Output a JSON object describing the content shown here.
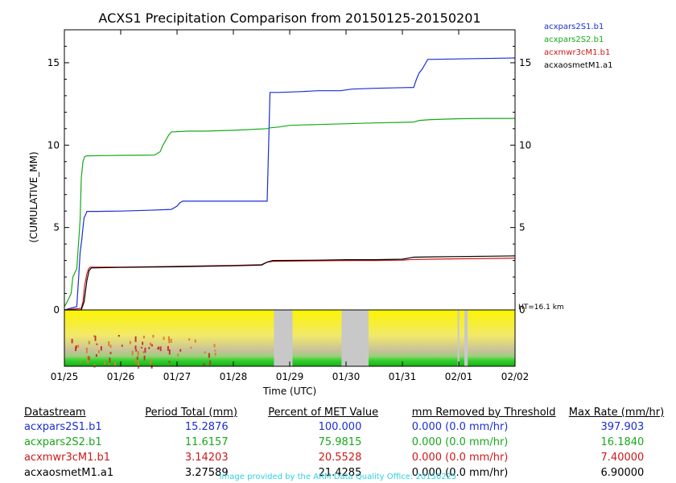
{
  "chart_data": {
    "type": "line",
    "title": "ACXS1 Precipitation Comparison from 20150125-20150201",
    "xlabel": "Time (UTC)",
    "ylabel": "(CUMULATIVE_MM)",
    "x_ticks": [
      "01/25",
      "01/26",
      "01/27",
      "01/28",
      "01/29",
      "01/30",
      "01/31",
      "02/01",
      "02/02"
    ],
    "xlim": [
      0,
      8
    ],
    "ylim": [
      0,
      17
    ],
    "y_ticks": [
      0,
      5,
      10,
      15
    ],
    "grid": false,
    "legend_position": "top-right, outside plot",
    "series": [
      {
        "name": "acxpars2S1.b1",
        "color": "#1a2ed6",
        "x": [
          0,
          0.22,
          0.25,
          0.28,
          0.31,
          0.33,
          0.35,
          0.38,
          0.4,
          0.6,
          1.0,
          1.5,
          1.9,
          2.0,
          2.05,
          2.1,
          2.5,
          3.0,
          3.6,
          3.65,
          3.8,
          4.2,
          4.5,
          4.9,
          5.0,
          5.1,
          5.5,
          6.2,
          6.25,
          6.3,
          6.35,
          6.4,
          6.45,
          8.0
        ],
        "y": [
          0,
          0.2,
          1.8,
          3.5,
          4.3,
          5.0,
          5.6,
          5.8,
          5.98,
          5.98,
          6.0,
          6.05,
          6.1,
          6.3,
          6.5,
          6.6,
          6.6,
          6.6,
          6.6,
          13.2,
          13.2,
          13.25,
          13.3,
          13.3,
          13.35,
          13.4,
          13.45,
          13.5,
          14.0,
          14.4,
          14.6,
          14.9,
          15.2,
          15.29
        ]
      },
      {
        "name": "acxpars2S2.b1",
        "color": "#17a81a",
        "x": [
          0,
          0.05,
          0.12,
          0.15,
          0.22,
          0.28,
          0.3,
          0.33,
          0.36,
          0.39,
          1.0,
          1.6,
          1.7,
          1.75,
          1.8,
          1.85,
          1.9,
          2.2,
          2.5,
          3.0,
          3.6,
          3.65,
          3.8,
          4.0,
          4.5,
          5.0,
          5.5,
          6.0,
          6.2,
          6.3,
          6.5,
          7.0,
          7.5,
          8.0
        ],
        "y": [
          0.2,
          0.5,
          1.0,
          2.0,
          2.5,
          5.5,
          8.0,
          9.0,
          9.3,
          9.35,
          9.38,
          9.4,
          9.6,
          10.0,
          10.3,
          10.6,
          10.8,
          10.85,
          10.85,
          10.9,
          11.0,
          11.05,
          11.1,
          11.2,
          11.25,
          11.3,
          11.35,
          11.38,
          11.4,
          11.5,
          11.55,
          11.6,
          11.62,
          11.62
        ]
      },
      {
        "name": "acxmwr3cM1.b1",
        "color": "#d01818",
        "x": [
          0,
          0.3,
          0.33,
          0.36,
          0.4,
          0.43,
          0.46,
          1.0,
          2.0,
          3.0,
          3.5,
          3.6,
          3.7,
          4.5,
          5.0,
          5.5,
          6.0,
          6.1,
          6.5,
          7.0,
          7.5,
          8.0
        ],
        "y": [
          0,
          0.1,
          0.5,
          1.5,
          2.2,
          2.5,
          2.6,
          2.6,
          2.65,
          2.7,
          2.75,
          2.9,
          2.95,
          2.98,
          3.0,
          3.0,
          3.02,
          3.05,
          3.08,
          3.1,
          3.12,
          3.14
        ]
      },
      {
        "name": "acxaosmetM1.a1",
        "color": "#000000",
        "x": [
          0,
          0.3,
          0.35,
          0.4,
          0.44,
          0.48,
          1.0,
          2.0,
          3.0,
          3.5,
          3.6,
          3.7,
          4.5,
          5.0,
          5.5,
          6.0,
          6.2,
          6.5,
          7.0,
          7.5,
          8.0
        ],
        "y": [
          0,
          0,
          0.5,
          1.8,
          2.4,
          2.55,
          2.58,
          2.62,
          2.68,
          2.72,
          2.9,
          3.0,
          3.02,
          3.05,
          3.05,
          3.08,
          3.2,
          3.22,
          3.24,
          3.26,
          3.28
        ]
      }
    ],
    "annotation": "HT=16.1 km",
    "gray_intervals": [
      [
        3.72,
        4.05
      ],
      [
        4.92,
        5.4
      ],
      [
        6.98,
        7.0
      ],
      [
        7.1,
        7.16
      ]
    ]
  },
  "stats_table": {
    "headers": [
      "Datastream",
      "Period Total (mm)",
      "Percent of MET Value",
      "mm Removed by Threshold",
      "Max Rate (mm/hr)"
    ],
    "rows": [
      {
        "name": "acxpars2S1.b1",
        "total": "15.2876",
        "percent": "100.000",
        "removed": "0.000 (0.0 mm/hr)",
        "max_rate": "397.903",
        "color": "#1a2ed6"
      },
      {
        "name": "acxpars2S2.b1",
        "total": "11.6157",
        "percent": "75.9815",
        "removed": "0.000 (0.0 mm/hr)",
        "max_rate": "16.1840",
        "color": "#17a81a"
      },
      {
        "name": "acxmwr3cM1.b1",
        "total": "3.14203",
        "percent": "20.5528",
        "removed": "0.000 (0.0 mm/hr)",
        "max_rate": "7.40000",
        "color": "#d01818"
      },
      {
        "name": "acxaosmetM1.a1",
        "total": "3.27589",
        "percent": "21.4285",
        "removed": "0.000 (0.0 mm/hr)",
        "max_rate": "6.90000",
        "color": "#000000"
      }
    ]
  },
  "credit": "Image provided by the ARM Data Quality Office: 20150225"
}
